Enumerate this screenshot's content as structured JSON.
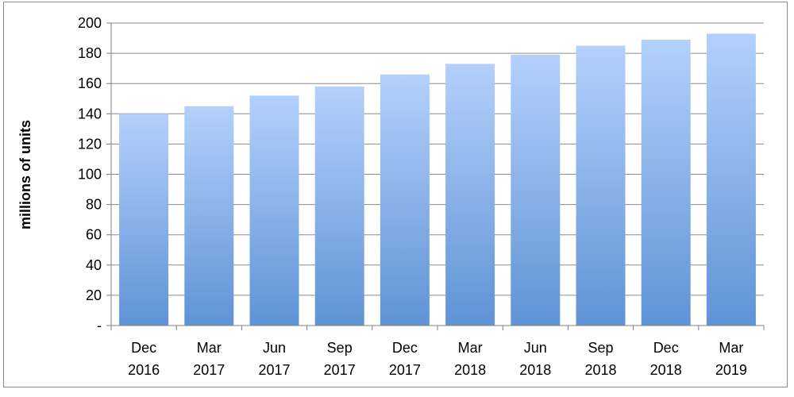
{
  "chart_data": {
    "type": "bar",
    "title": "",
    "xlabel": "",
    "ylabel": "millions of units",
    "categories": [
      [
        "Dec",
        "2016"
      ],
      [
        "Mar",
        "2017"
      ],
      [
        "Jun",
        "2017"
      ],
      [
        "Sep",
        "2017"
      ],
      [
        "Dec",
        "2017"
      ],
      [
        "Mar",
        "2018"
      ],
      [
        "Jun",
        "2018"
      ],
      [
        "Sep",
        "2018"
      ],
      [
        "Dec",
        "2018"
      ],
      [
        "Mar",
        "2019"
      ]
    ],
    "values": [
      140,
      145,
      152,
      158,
      166,
      173,
      179,
      185,
      189,
      193
    ],
    "ylim": [
      0,
      200
    ],
    "yticks": [
      0,
      20,
      40,
      60,
      80,
      100,
      120,
      140,
      160,
      180,
      200
    ],
    "ytick_labels": [
      "-",
      "20",
      "40",
      "60",
      "80",
      "100",
      "120",
      "140",
      "160",
      "180",
      "200"
    ],
    "grid": true,
    "legend": "none",
    "colors": {
      "bar_top": "#b4d0fb",
      "bar_bottom": "#5f93d6",
      "grid": "#8c8c8c",
      "axis": "#808080"
    }
  }
}
